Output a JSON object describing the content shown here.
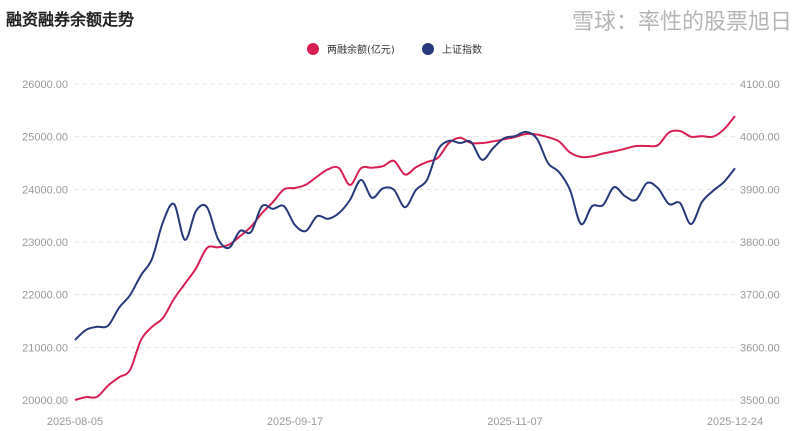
{
  "chart_data": {
    "type": "line",
    "title": "融资融券余额走势",
    "x_tick_labels": [
      "2025-08-05",
      "2025-09-17",
      "2025-11-07",
      "2025-12-24"
    ],
    "x_range": [
      "2025-08-05",
      "2025-12-24"
    ],
    "legend_position": "top",
    "grid": true,
    "y_left": {
      "ticks": [
        "20000.00",
        "21000.00",
        "22000.00",
        "23000.00",
        "24000.00",
        "25000.00",
        "26000.00"
      ],
      "range": [
        20000,
        26000
      ]
    },
    "y_right": {
      "ticks": [
        "3500.00",
        "3600.00",
        "3700.00",
        "3800.00",
        "3900.00",
        "4000.00",
        "4100.00"
      ],
      "range": [
        3500,
        4100
      ]
    },
    "series": [
      {
        "name": "两融余额(亿元)",
        "axis": "left",
        "color": "#d81e52",
        "values": [
          20000,
          20055,
          20060,
          20273,
          20432,
          20569,
          21140,
          21390,
          21560,
          21920,
          22210,
          22500,
          22886,
          22900,
          22950,
          23110,
          23290,
          23550,
          23760,
          24000,
          24025,
          24090,
          24240,
          24380,
          24405,
          24082,
          24400,
          24410,
          24440,
          24540,
          24280,
          24420,
          24519,
          24600,
          24880,
          24980,
          24880,
          24880,
          24910,
          24950,
          24994,
          25050,
          25040,
          24990,
          24910,
          24700,
          24614,
          24625,
          24680,
          24720,
          24770,
          24823,
          24823,
          24840,
          25080,
          25107,
          25000,
          25010,
          25000,
          25140,
          25392
        ]
      },
      {
        "name": "上证指数",
        "axis": "right",
        "color": "#26397a",
        "values": [
          3614,
          3633,
          3639,
          3641,
          3675,
          3699,
          3737,
          3768,
          3838,
          3872,
          3804,
          3859,
          3866,
          3806,
          3789,
          3821,
          3819,
          3868,
          3863,
          3868,
          3832,
          3821,
          3849,
          3844,
          3855,
          3880,
          3918,
          3884,
          3902,
          3899,
          3866,
          3899,
          3918,
          3975,
          3992,
          3988,
          3990,
          3956,
          3978,
          3997,
          4001,
          4009,
          3996,
          3950,
          3933,
          3899,
          3834,
          3868,
          3870,
          3904,
          3887,
          3880,
          3912,
          3902,
          3872,
          3874,
          3834,
          3876,
          3897,
          3914,
          3940
        ]
      }
    ]
  },
  "watermark": "雪球：率性的股票旭日"
}
